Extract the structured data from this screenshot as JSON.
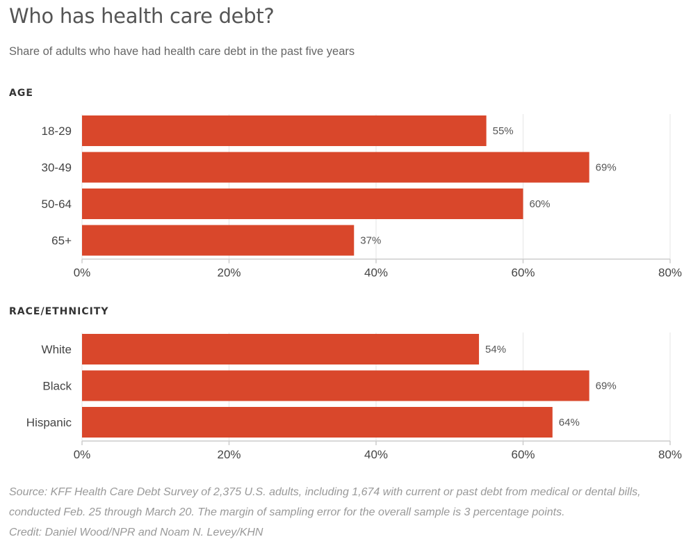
{
  "title": "Who has health care debt?",
  "subtitle": "Share of adults who have had health care debt in the past five years",
  "chart_data": [
    {
      "type": "bar",
      "orientation": "horizontal",
      "title": "AGE",
      "categories": [
        "18-29",
        "30-49",
        "50-64",
        "65+"
      ],
      "values": [
        55,
        69,
        60,
        37
      ],
      "value_labels": [
        "55%",
        "69%",
        "60%",
        "37%"
      ],
      "xlim": [
        0,
        80
      ],
      "ticks": [
        0,
        20,
        40,
        60,
        80
      ],
      "tick_labels": [
        "0%",
        "20%",
        "40%",
        "60%",
        "80%"
      ],
      "grid": true,
      "bar_color": "#d9472b"
    },
    {
      "type": "bar",
      "orientation": "horizontal",
      "title": "RACE/ETHNICITY",
      "categories": [
        "White",
        "Black",
        "Hispanic"
      ],
      "values": [
        54,
        69,
        64
      ],
      "value_labels": [
        "54%",
        "69%",
        "64%"
      ],
      "xlim": [
        0,
        80
      ],
      "ticks": [
        0,
        20,
        40,
        60,
        80
      ],
      "tick_labels": [
        "0%",
        "20%",
        "40%",
        "60%",
        "80%"
      ],
      "grid": true,
      "bar_color": "#d9472b"
    }
  ],
  "footer": {
    "source_line1": "Source: KFF Health Care Debt Survey of 2,375 U.S. adults, including 1,674 with current or past debt from medical or dental bills,",
    "source_line2": "conducted Feb. 25 through March 20. The margin of sampling error for the overall sample is 3 percentage points.",
    "credit": "Credit: Daniel Wood/NPR and Noam N. Levey/KHN"
  },
  "colors": {
    "bar": "#d9472b",
    "grid": "#e6e6e6",
    "axis": "#cccccc"
  }
}
